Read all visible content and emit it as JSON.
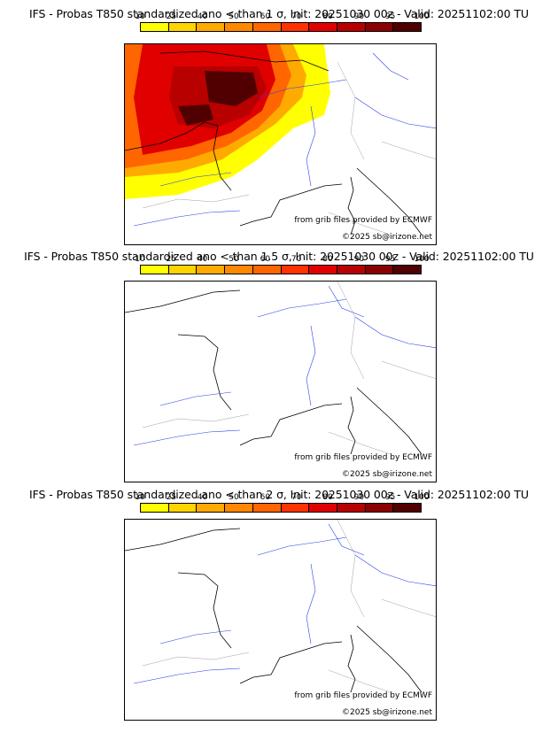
{
  "colorbar": {
    "ticks": [
      "10",
      "25",
      "40",
      "50",
      "60",
      "70",
      "80",
      "90",
      "95",
      "100"
    ],
    "colors": [
      "#ffff00",
      "#ffd400",
      "#ffaa00",
      "#ff8800",
      "#ff6600",
      "#ff3300",
      "#e00000",
      "#b80000",
      "#8b0000",
      "#500000"
    ]
  },
  "panels": [
    {
      "title": "IFS - Probas T850  standardized ano < than 1 σ, Init: 20251030 00z - Valid: 20251102:00 TU",
      "credit_source": "from grib files provided by ECMWF",
      "credit_copyright": "©2025 sb@irizone.net",
      "has_field": true
    },
    {
      "title": "IFS - Probas T850  standardized ano < than 1.5 σ, Init: 20251030 00z - Valid: 20251102:00 TU",
      "credit_source": "from grib files provided by ECMWF",
      "credit_copyright": "©2025 sb@irizone.net",
      "has_field": false
    },
    {
      "title": "IFS - Probas T850  standardized ano < than 2 σ, Init: 20251030 00z - Valid: 20251102:00 TU",
      "credit_source": "from grib files provided by ECMWF",
      "credit_copyright": "©2025 sb@irizone.net",
      "has_field": false
    }
  ]
}
